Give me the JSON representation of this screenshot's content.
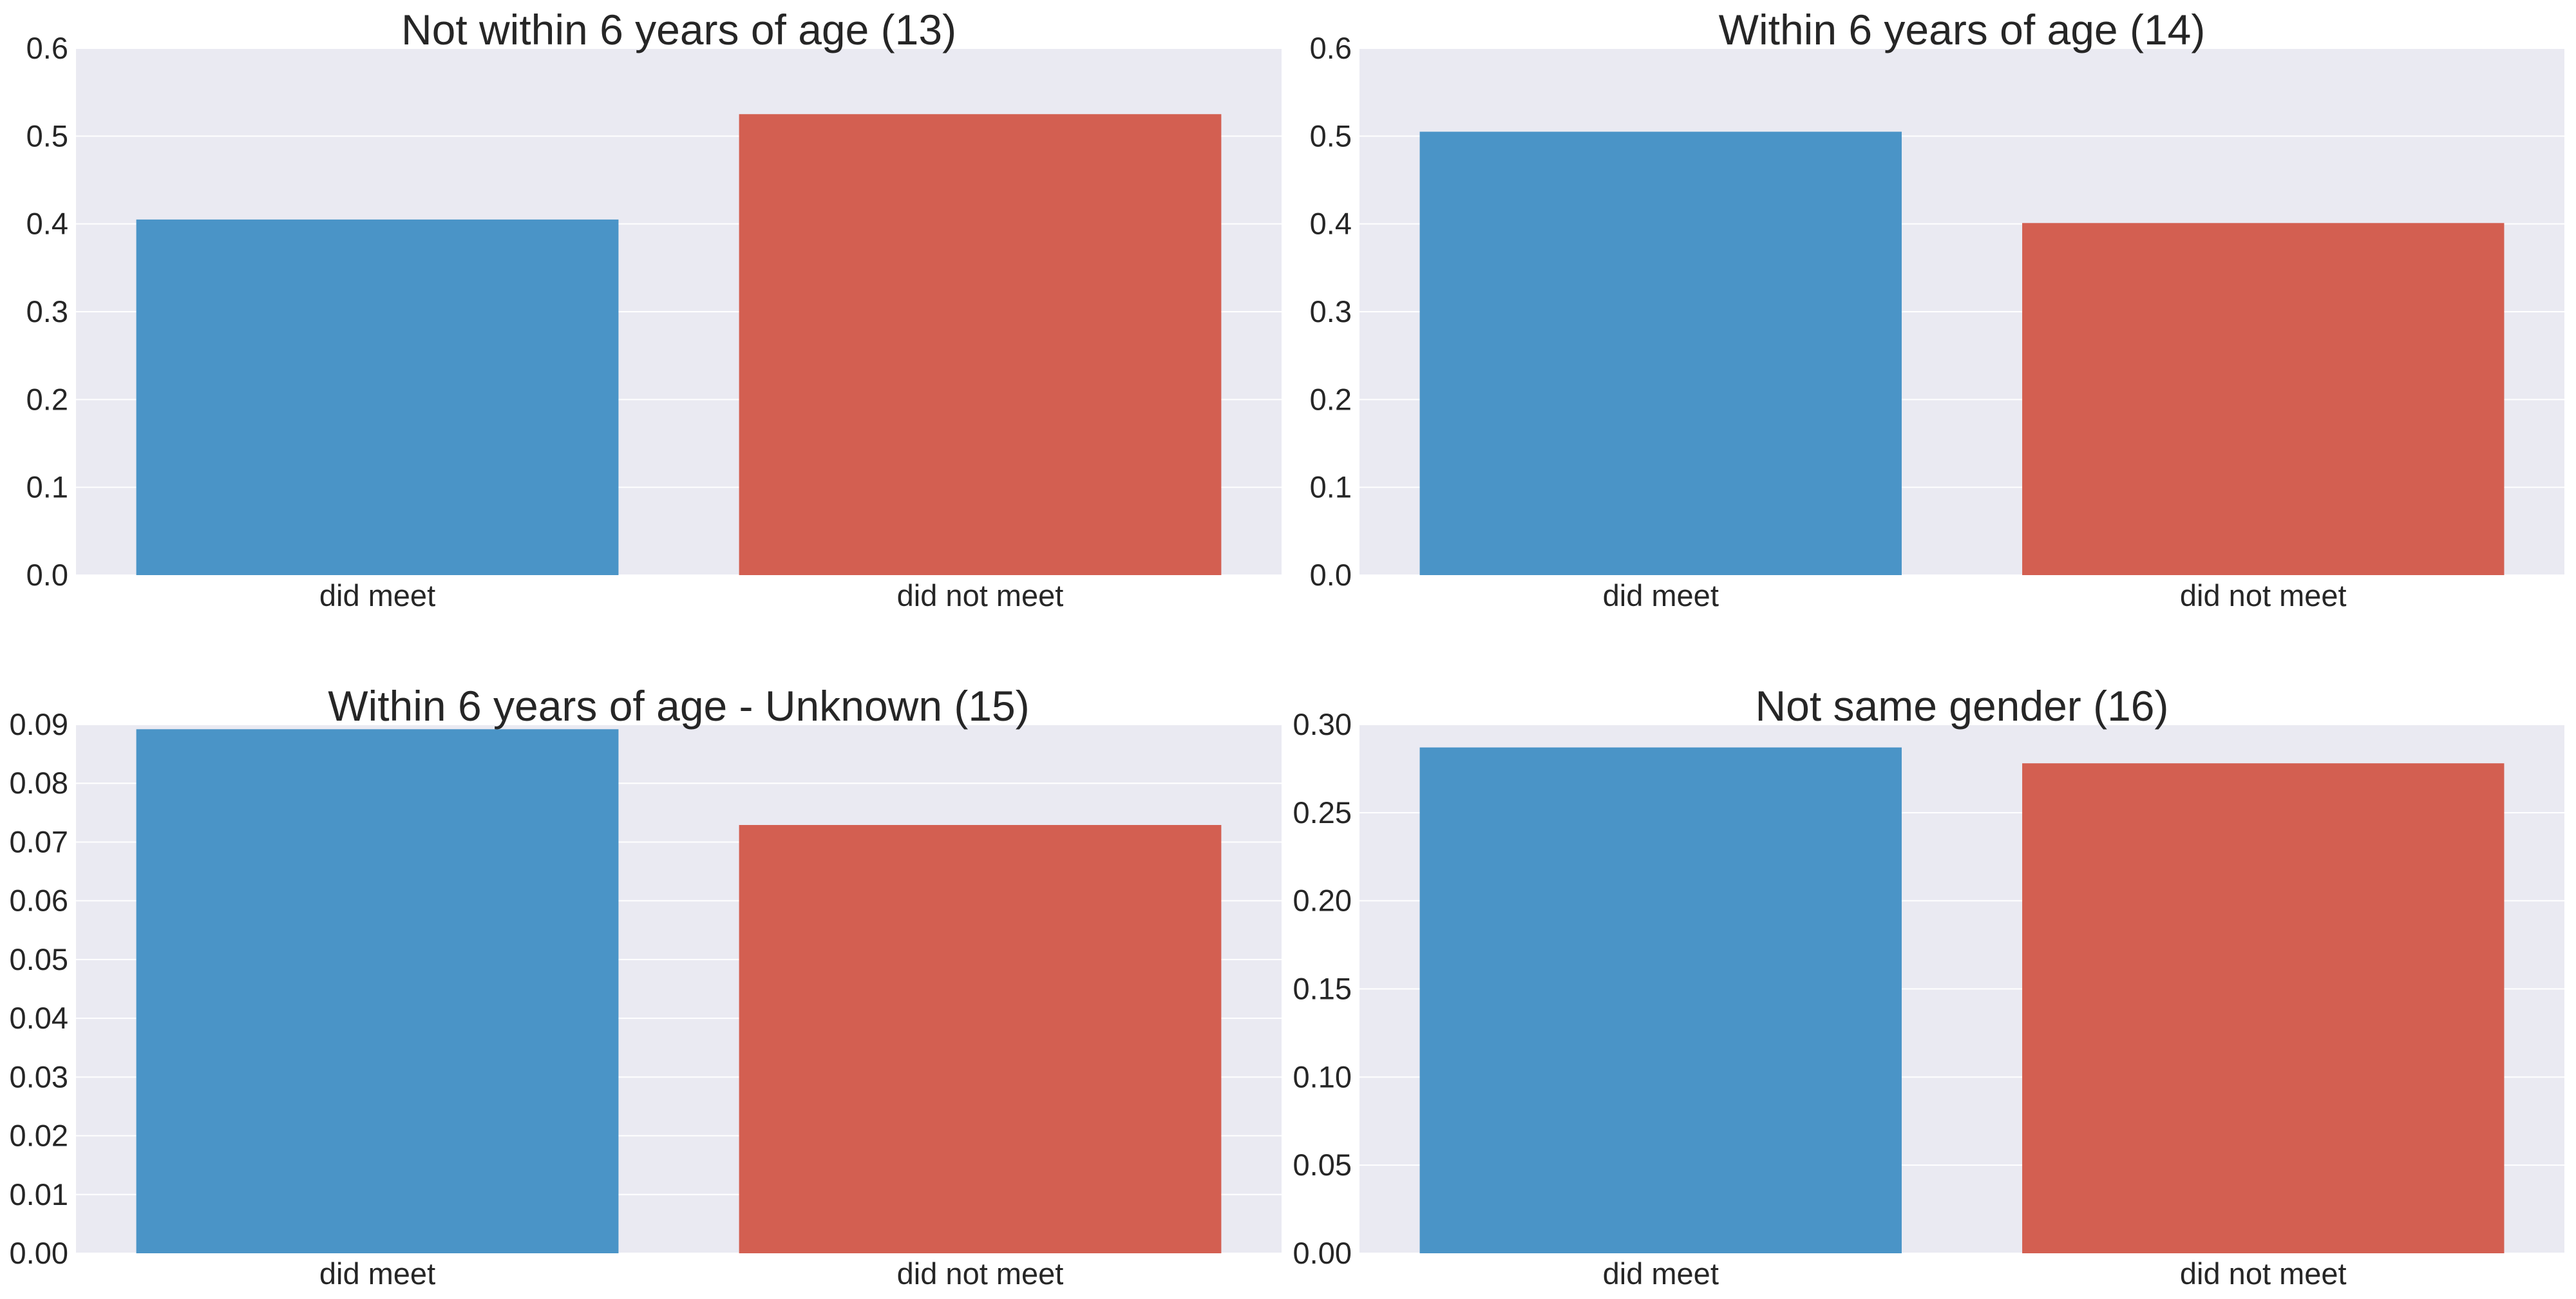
{
  "colors": {
    "panel_bg": "#EAEAF2",
    "grid": "#FFFFFF",
    "text": "#262626"
  },
  "chart_data": [
    {
      "type": "bar",
      "title": "Not within 6 years of age (13)",
      "categories": [
        "did meet",
        "did not meet"
      ],
      "values": [
        0.405,
        0.525
      ],
      "bar_colors": [
        "#4A94C7",
        "#D35F51"
      ],
      "ylim": [
        0,
        0.6
      ],
      "yticks": [
        "0.0",
        "0.1",
        "0.2",
        "0.3",
        "0.4",
        "0.5",
        "0.6"
      ],
      "grid": true
    },
    {
      "type": "bar",
      "title": "Within 6 years of age (14)",
      "categories": [
        "did meet",
        "did not meet"
      ],
      "values": [
        0.505,
        0.401
      ],
      "bar_colors": [
        "#4A94C7",
        "#D35F51"
      ],
      "ylim": [
        0,
        0.6
      ],
      "yticks": [
        "0.0",
        "0.1",
        "0.2",
        "0.3",
        "0.4",
        "0.5",
        "0.6"
      ],
      "grid": true
    },
    {
      "type": "bar",
      "title": "Within 6 years of age - Unknown (15)",
      "categories": [
        "did meet",
        "did not meet"
      ],
      "values": [
        0.0892,
        0.0729
      ],
      "bar_colors": [
        "#4A94C7",
        "#D35F51"
      ],
      "ylim": [
        0,
        0.09
      ],
      "yticks": [
        "0.00",
        "0.01",
        "0.02",
        "0.03",
        "0.04",
        "0.05",
        "0.06",
        "0.07",
        "0.08",
        "0.09"
      ],
      "grid": true
    },
    {
      "type": "bar",
      "title": "Not same gender (16)",
      "categories": [
        "did meet",
        "did not meet"
      ],
      "values": [
        0.287,
        0.278
      ],
      "bar_colors": [
        "#4A94C7",
        "#D35F51"
      ],
      "ylim": [
        0,
        0.3
      ],
      "yticks": [
        "0.00",
        "0.05",
        "0.10",
        "0.15",
        "0.20",
        "0.25",
        "0.30"
      ],
      "grid": true
    }
  ]
}
